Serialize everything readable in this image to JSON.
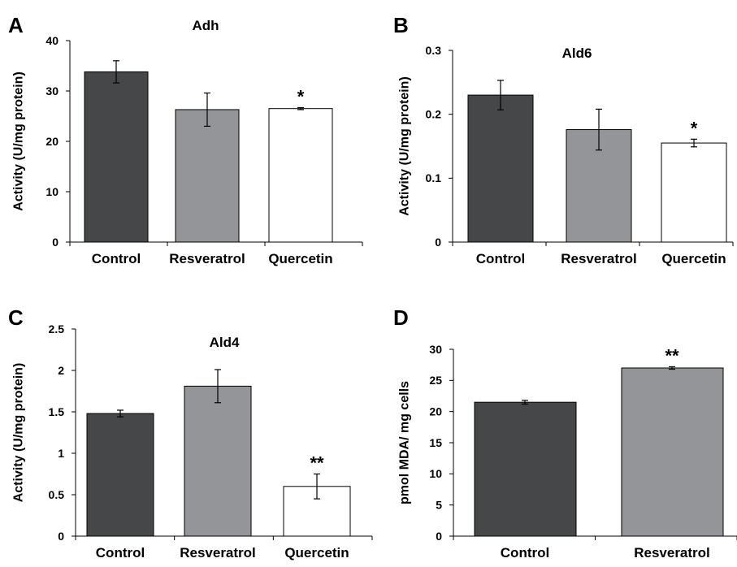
{
  "chart_data": [
    {
      "type": "bar",
      "panel": "A",
      "title": "Adh",
      "ylabel": "Activity (U/mg protein)",
      "xlabel": "",
      "categories": [
        "Control",
        "Resveratrol",
        "Quercetin"
      ],
      "values": [
        33.8,
        26.3,
        26.5
      ],
      "errors": [
        2.2,
        3.3,
        0.2
      ],
      "significance": [
        "",
        "",
        "*"
      ],
      "bar_colors": [
        "#464749",
        "#939598",
        "#ffffff"
      ],
      "ylim": [
        0,
        40
      ],
      "yticks": [
        "0",
        "10",
        "20",
        "30",
        "40"
      ],
      "ytick_values": [
        0,
        10,
        20,
        30,
        40
      ],
      "grid": false,
      "legend": "none"
    },
    {
      "type": "bar",
      "panel": "B",
      "title": "Ald6",
      "ylabel": "Activity (U/mg protein)",
      "xlabel": "",
      "categories": [
        "Control",
        "Resveratrol",
        "Quercetin"
      ],
      "values": [
        0.23,
        0.176,
        0.155
      ],
      "errors": [
        0.023,
        0.032,
        0.006
      ],
      "significance": [
        "",
        "",
        "*"
      ],
      "bar_colors": [
        "#464749",
        "#939598",
        "#ffffff"
      ],
      "ylim": [
        0,
        0.3
      ],
      "yticks": [
        "0",
        "0.1",
        "0.2",
        "0.3"
      ],
      "ytick_values": [
        0,
        0.1,
        0.2,
        0.3
      ],
      "grid": false,
      "legend": "none"
    },
    {
      "type": "bar",
      "panel": "C",
      "title": "Ald4",
      "ylabel": "Activity (U/mg protein)",
      "xlabel": "",
      "categories": [
        "Control",
        "Resveratrol",
        "Quercetin"
      ],
      "values": [
        1.48,
        1.81,
        0.6
      ],
      "errors": [
        0.04,
        0.2,
        0.15
      ],
      "significance": [
        "",
        "",
        "**"
      ],
      "bar_colors": [
        "#464749",
        "#939598",
        "#ffffff"
      ],
      "ylim": [
        0,
        2.5
      ],
      "yticks": [
        "0",
        "0.5",
        "1",
        "1.5",
        "2",
        "2.5"
      ],
      "ytick_values": [
        0,
        0.5,
        1,
        1.5,
        2,
        2.5
      ],
      "grid": false,
      "legend": "none"
    },
    {
      "type": "bar",
      "panel": "D",
      "title": "",
      "ylabel": "pmol MDA/ mg cells",
      "xlabel": "",
      "categories": [
        "Control",
        "Resveratrol"
      ],
      "values": [
        21.5,
        27.0
      ],
      "errors": [
        0.3,
        0.2
      ],
      "significance": [
        "",
        "**"
      ],
      "bar_colors": [
        "#464749",
        "#939598"
      ],
      "ylim": [
        0,
        30
      ],
      "yticks": [
        "0",
        "5",
        "10",
        "15",
        "20",
        "25",
        "30"
      ],
      "ytick_values": [
        0,
        5,
        10,
        15,
        20,
        25,
        30
      ],
      "grid": false,
      "legend": "none"
    }
  ]
}
